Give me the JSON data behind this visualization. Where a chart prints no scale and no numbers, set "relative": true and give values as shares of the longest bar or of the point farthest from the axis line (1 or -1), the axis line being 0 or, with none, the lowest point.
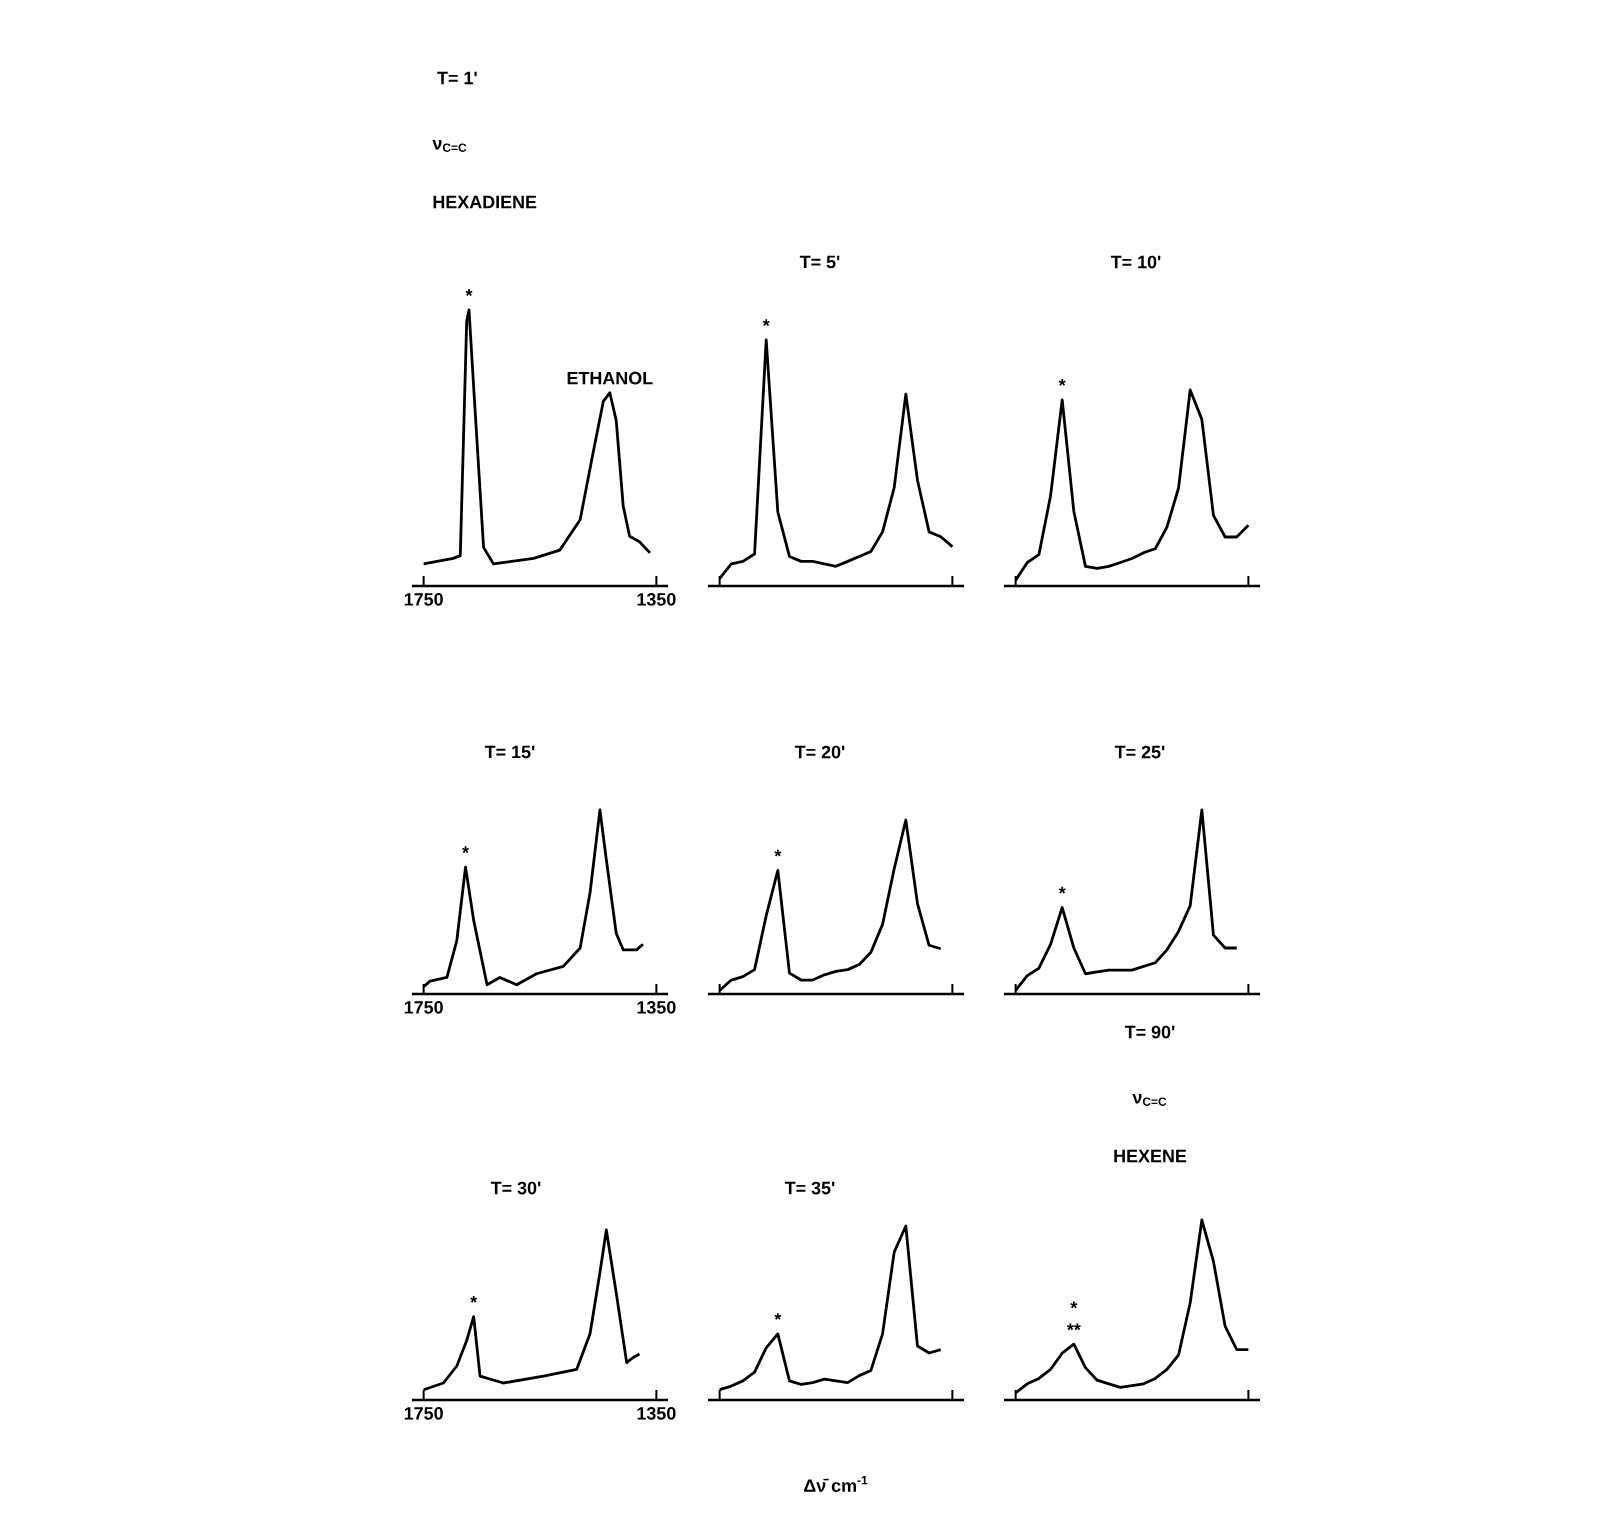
{
  "chart_data": [
    {
      "type": "line",
      "title": "T= 1'",
      "relative": true,
      "xlim": [
        1770,
        1330
      ],
      "xticks": [
        1750,
        1350
      ],
      "x": [
        1750,
        1699,
        1687,
        1676,
        1672,
        1664,
        1647,
        1630,
        1561,
        1516,
        1481,
        1459,
        1441,
        1430,
        1419,
        1407,
        1396,
        1379,
        1361
      ],
      "values": [
        0.08,
        0.1,
        0.11,
        0.96,
        1.0,
        0.72,
        0.14,
        0.08,
        0.1,
        0.13,
        0.24,
        0.48,
        0.67,
        0.7,
        0.6,
        0.29,
        0.18,
        0.16,
        0.12
      ],
      "color": "#000000",
      "annotations": [
        "ν$_{C=C}$",
        "HEXADIENE",
        {
          "text": "ETHANOL",
          "x": 1430,
          "y": 0.7
        },
        {
          "text": "*",
          "x": 1672,
          "y": 1.0
        }
      ]
    },
    {
      "type": "line",
      "title": "T= 5'",
      "relative": true,
      "categories": [
        null,
        null,
        null,
        null,
        null,
        null,
        null,
        null,
        null,
        null,
        null,
        null,
        null,
        null,
        null,
        null,
        null,
        null,
        null,
        null,
        null
      ],
      "values": [
        0.03,
        0.09,
        0.1,
        0.13,
        1.0,
        0.3,
        0.12,
        0.1,
        0.1,
        0.09,
        0.08,
        0.1,
        0.12,
        0.14,
        0.22,
        0.4,
        0.78,
        0.43,
        0.22,
        0.2,
        0.16
      ],
      "color": "#000000",
      "annotations": [
        {
          "text": "*",
          "y": 1.0
        }
      ]
    },
    {
      "type": "line",
      "title": "T= 10'",
      "relative": true,
      "categories": [
        null,
        null,
        null,
        null,
        null,
        null,
        null,
        null,
        null,
        null,
        null,
        null,
        null,
        null,
        null,
        null,
        null,
        null,
        null,
        null,
        null
      ],
      "values": [
        0.03,
        0.12,
        0.16,
        0.46,
        0.95,
        0.38,
        0.1,
        0.09,
        0.1,
        0.12,
        0.14,
        0.17,
        0.19,
        0.3,
        0.5,
        1.0,
        0.85,
        0.36,
        0.25,
        0.25,
        0.31
      ],
      "color": "#000000",
      "annotations": [
        {
          "text": "*",
          "y": 0.95
        }
      ]
    },
    {
      "type": "line",
      "title": "T= 15'",
      "relative": true,
      "xlim": [
        1770,
        1330
      ],
      "xticks": [
        1750,
        1350
      ],
      "x": [
        1750,
        1739,
        1710,
        1693,
        1678,
        1664,
        1641,
        1619,
        1590,
        1556,
        1510,
        1481,
        1464,
        1447,
        1436,
        1419,
        1407,
        1384,
        1373
      ],
      "values": [
        0.04,
        0.07,
        0.09,
        0.29,
        0.69,
        0.4,
        0.05,
        0.09,
        0.05,
        0.11,
        0.15,
        0.25,
        0.55,
        1.0,
        0.73,
        0.33,
        0.24,
        0.24,
        0.27
      ],
      "color": "#000000",
      "annotations": [
        {
          "text": "*",
          "x": 1678,
          "y": 0.69
        }
      ]
    },
    {
      "type": "line",
      "title": "T= 20'",
      "relative": true,
      "categories": [
        null,
        null,
        null,
        null,
        null,
        null,
        null,
        null,
        null,
        null,
        null,
        null,
        null,
        null,
        null,
        null,
        null,
        null,
        null,
        null,
        null
      ],
      "values": [
        0.02,
        0.08,
        0.1,
        0.14,
        0.45,
        0.71,
        0.12,
        0.08,
        0.08,
        0.11,
        0.13,
        0.14,
        0.17,
        0.24,
        0.4,
        0.72,
        1.0,
        0.52,
        0.28,
        0.26,
        null
      ],
      "color": "#000000",
      "annotations": [
        {
          "text": "*",
          "y": 0.71
        }
      ]
    },
    {
      "type": "line",
      "title": "T= 25'",
      "relative": true,
      "categories": [
        null,
        null,
        null,
        null,
        null,
        null,
        null,
        null,
        null,
        null,
        null,
        null,
        null,
        null,
        null,
        null,
        null,
        null,
        null,
        null,
        null
      ],
      "values": [
        0.02,
        0.1,
        0.14,
        0.27,
        0.47,
        0.25,
        0.11,
        0.12,
        0.13,
        0.13,
        0.13,
        0.15,
        0.17,
        0.24,
        0.34,
        0.48,
        1.0,
        0.32,
        0.25,
        0.25,
        null
      ],
      "color": "#000000",
      "annotations": [
        {
          "text": "*",
          "y": 0.47
        }
      ]
    },
    {
      "type": "line",
      "title": "T= 30'",
      "relative": true,
      "xlim": [
        1770,
        1330
      ],
      "xticks": [
        1750,
        1350
      ],
      "x": [
        1750,
        1716,
        1693,
        1676,
        1664,
        1653,
        1613,
        1544,
        1487,
        1464,
        1447,
        1436,
        1419,
        1401,
        1390,
        1379
      ],
      "values": [
        0.06,
        0.1,
        0.2,
        0.35,
        0.49,
        0.14,
        0.1,
        0.14,
        0.18,
        0.39,
        0.75,
        1.0,
        0.63,
        0.22,
        0.25,
        0.27
      ],
      "color": "#000000",
      "annotations": [
        {
          "text": "*",
          "x": 1664,
          "y": 0.49
        }
      ]
    },
    {
      "type": "line",
      "title": "T= 35'",
      "xlabel": "Δν̄ cm$^{-1}$",
      "relative": true,
      "categories": [
        null,
        null,
        null,
        null,
        null,
        null,
        null,
        null,
        null,
        null,
        null,
        null,
        null,
        null,
        null,
        null,
        null,
        null,
        null,
        null,
        null
      ],
      "values": [
        0.06,
        0.08,
        0.11,
        0.16,
        0.3,
        0.38,
        0.11,
        0.09,
        0.1,
        0.12,
        0.11,
        0.1,
        0.14,
        0.17,
        0.38,
        0.85,
        1.0,
        0.31,
        0.27,
        0.29,
        null
      ],
      "color": "#000000",
      "annotations": [
        {
          "text": "*",
          "y": 0.38
        }
      ]
    },
    {
      "type": "line",
      "title": "T= 90'",
      "relative": true,
      "categories": [
        null,
        null,
        null,
        null,
        null,
        null,
        null,
        null,
        null,
        null,
        null,
        null,
        null,
        null,
        null,
        null,
        null,
        null,
        null,
        null,
        null
      ],
      "values": [
        0.04,
        0.09,
        0.12,
        0.17,
        0.26,
        0.31,
        0.18,
        0.11,
        0.09,
        0.07,
        0.08,
        0.09,
        0.12,
        0.17,
        0.25,
        0.54,
        1.0,
        0.77,
        0.41,
        0.28,
        0.28
      ],
      "color": "#000000",
      "annotations": [
        "ν$_{C=C}$",
        "HEXENE",
        {
          "text": "**",
          "y": 0.31
        },
        {
          "text": "*",
          "y": 0.31
        }
      ]
    }
  ]
}
